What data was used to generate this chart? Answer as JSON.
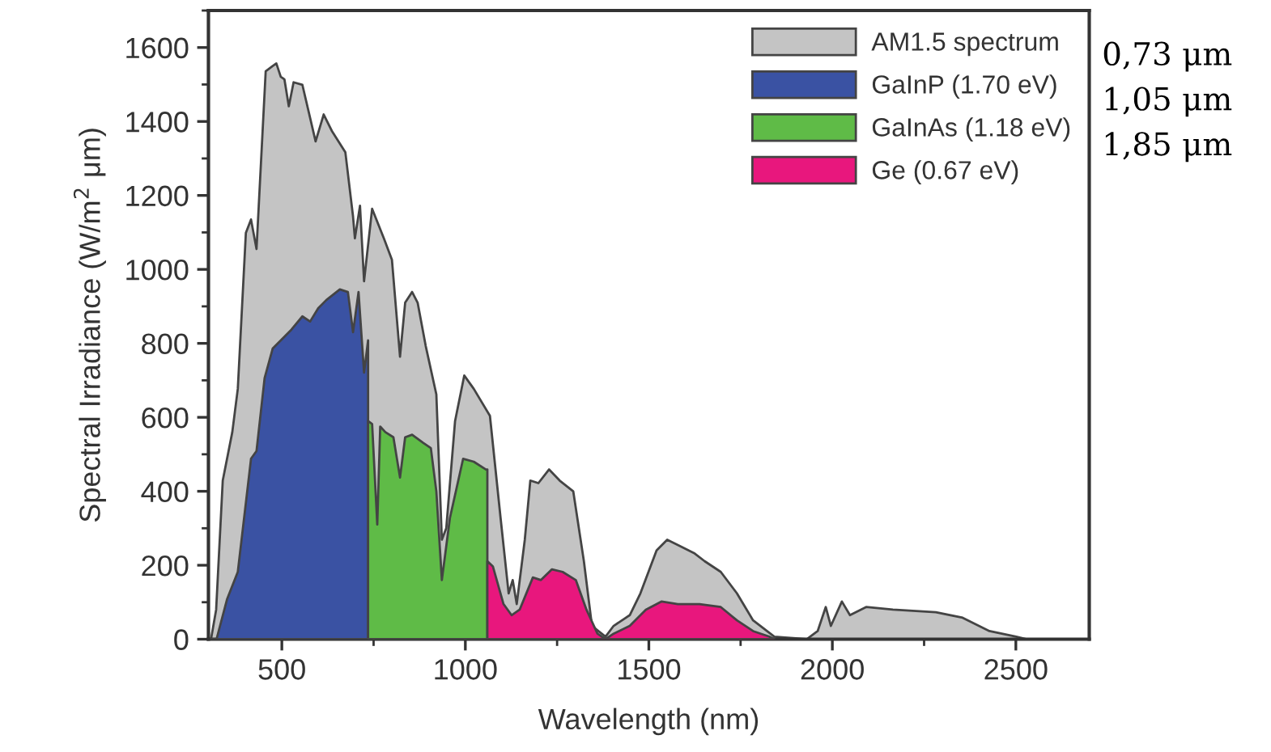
{
  "chart_data": {
    "type": "area",
    "xlabel": "Wavelength (nm)",
    "ylabel": "Spectral Irradiance (W/m$^{2}$ μm)",
    "xlim": [
      300,
      2700
    ],
    "xticks": [
      500,
      1000,
      1500,
      2000,
      2500
    ],
    "ylim": [
      0,
      1700
    ],
    "yticks": [
      0,
      200,
      400,
      600,
      800,
      1000,
      1200,
      1400,
      1600
    ],
    "grid": false,
    "legend": "top right",
    "annotations": [
      "0,73 μm",
      "1,05 μm",
      "1,85 μm"
    ],
    "series": [
      {
        "name": "AM1.5 spectrum",
        "color": "#c4c4c4",
        "x": [
          307,
          321,
          339,
          365,
          380,
          402,
          416,
          431,
          456,
          475,
          485,
          497,
          507,
          519,
          532,
          556,
          592,
          614,
          636,
          673,
          694,
          699,
          713,
          724,
          746,
          778,
          800,
          822,
          836,
          855,
          870,
          892,
          921,
          936,
          948,
          972,
          997,
          1023,
          1067,
          1096,
          1118,
          1129,
          1140,
          1162,
          1177,
          1199,
          1228,
          1257,
          1294,
          1323,
          1345,
          1382,
          1404,
          1448,
          1477,
          1521,
          1550,
          1579,
          1623,
          1652,
          1696,
          1740,
          1784,
          1842,
          1930,
          1960,
          1982,
          1996,
          2026,
          2048,
          2092,
          2165,
          2282,
          2355,
          2428,
          2501,
          2530
        ],
        "values": [
          0,
          80,
          429,
          560,
          677,
          1099,
          1135,
          1055,
          1536,
          1550,
          1557,
          1521,
          1514,
          1441,
          1506,
          1499,
          1346,
          1419,
          1375,
          1317,
          1143,
          1084,
          1172,
          968,
          1164,
          1084,
          1026,
          764,
          910,
          939,
          910,
          793,
          662,
          269,
          300,
          590,
          713,
          677,
          604,
          328,
          124,
          160,
          95,
          269,
          429,
          422,
          459,
          429,
          400,
          211,
          36,
          7,
          36,
          65,
          124,
          240,
          269,
          255,
          233,
          211,
          182,
          124,
          51,
          7,
          0,
          22,
          87,
          36,
          102,
          65,
          87,
          80,
          73,
          58,
          22,
          7,
          0
        ]
      },
      {
        "name": "GaInP (1.70 eV)",
        "color": "#3a52a3",
        "x": [
          307,
          322,
          351,
          380,
          416,
          431,
          453,
          475,
          497,
          526,
          556,
          577,
          599,
          621,
          658,
          680,
          694,
          709,
          724,
          735,
          735
        ],
        "values": [
          0,
          0,
          109,
          182,
          488,
          509,
          706,
          786,
          808,
          837,
          873,
          859,
          895,
          917,
          946,
          939,
          830,
          939,
          721,
          808,
          0
        ]
      },
      {
        "name": "GaInAs (1.18 eV)",
        "color": "#5fbb47",
        "x": [
          735,
          735,
          746,
          760,
          768,
          782,
          804,
          822,
          836,
          855,
          885,
          906,
          921,
          936,
          958,
          994,
          1023,
          1056,
          1060,
          1060
        ],
        "values": [
          0,
          590,
          582,
          310,
          575,
          560,
          546,
          437,
          546,
          553,
          531,
          517,
          400,
          160,
          328,
          488,
          480,
          459,
          459,
          0
        ]
      },
      {
        "name": "Ge (0.67 eV)",
        "color": "#e8177d",
        "x": [
          1060,
          1060,
          1075,
          1104,
          1126,
          1148,
          1184,
          1206,
          1236,
          1265,
          1301,
          1330,
          1360,
          1382,
          1404,
          1448,
          1492,
          1535,
          1579,
          1638,
          1696,
          1740,
          1784,
          1828,
          1842
        ],
        "values": [
          0,
          211,
          197,
          95,
          65,
          80,
          167,
          160,
          189,
          182,
          160,
          80,
          15,
          0,
          15,
          36,
          80,
          102,
          95,
          95,
          87,
          51,
          22,
          7,
          0
        ]
      }
    ]
  }
}
